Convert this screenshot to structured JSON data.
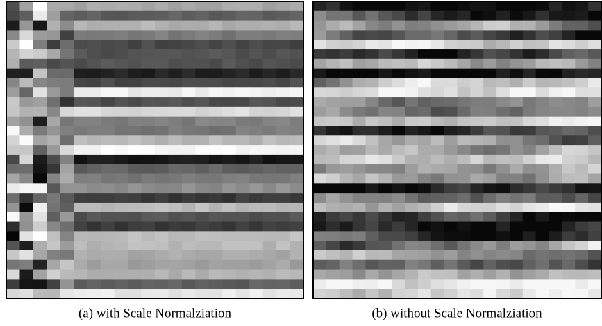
{
  "panels": [
    {
      "caption": "(a) with Scale Normalziation"
    },
    {
      "caption": "(b) without Scale Normalziation"
    }
  ]
}
